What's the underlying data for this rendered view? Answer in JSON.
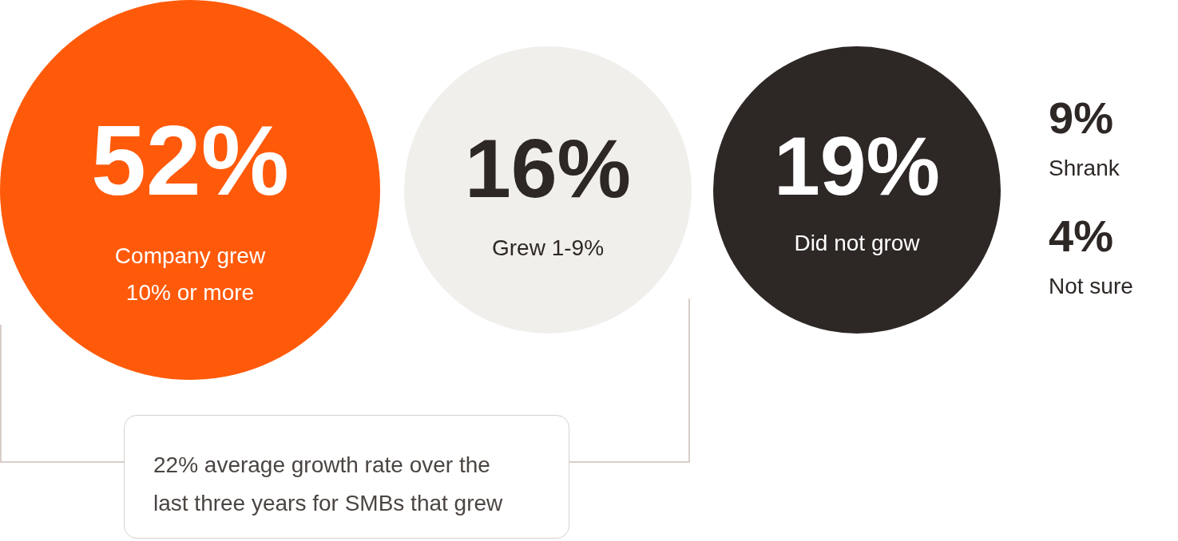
{
  "chart_data": {
    "type": "other",
    "categories": [
      "Company grew 10% or more",
      "Grew 1-9%",
      "Did not grow",
      "Shrank",
      "Not sure"
    ],
    "values": [
      52,
      16,
      19,
      9,
      4
    ],
    "value_labels": [
      "52%",
      "16%",
      "19%",
      "9%",
      "4%"
    ],
    "colors": [
      "#ff5a0a",
      "#f0efec",
      "#2d2725",
      null,
      null
    ],
    "annotations": [
      "22% average growth rate over the last three years for SMBs that grew"
    ]
  }
}
